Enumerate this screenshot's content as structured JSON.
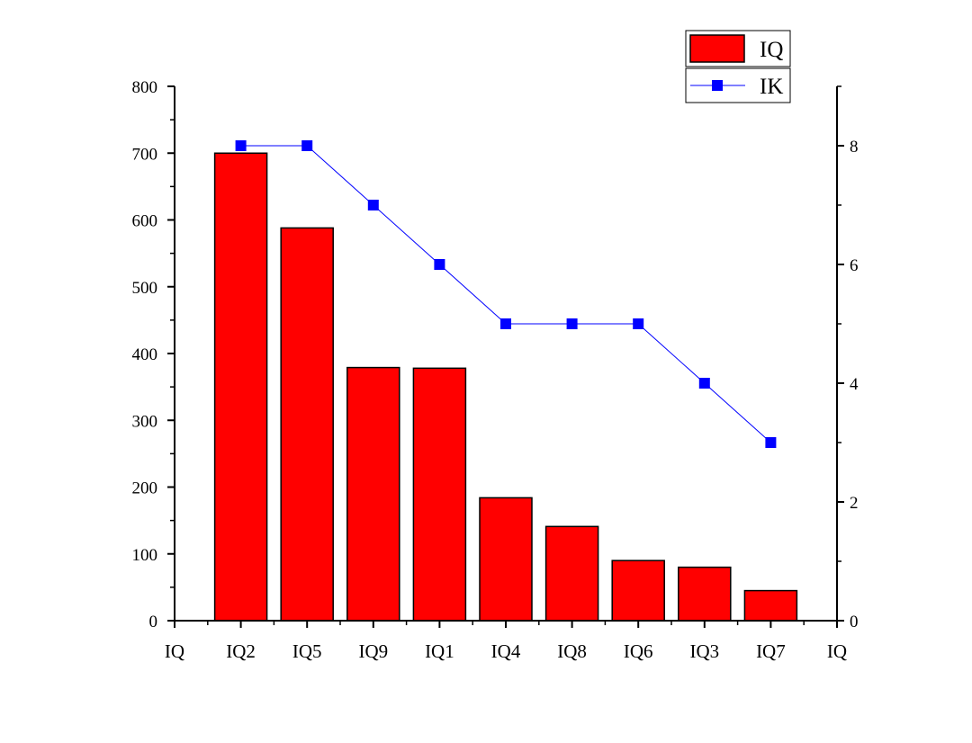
{
  "chart_data": {
    "type": "bar+line",
    "categories": [
      "IQ2",
      "IQ5",
      "IQ9",
      "IQ1",
      "IQ4",
      "IQ8",
      "IQ6",
      "IQ3",
      "IQ7"
    ],
    "x_edge_labels": [
      "IQ",
      "IQ"
    ],
    "series": [
      {
        "name": "IQ",
        "type": "bar",
        "axis": "left",
        "color": "#ff0000",
        "values": [
          700,
          588,
          379,
          378,
          184,
          141,
          90,
          80,
          45
        ]
      },
      {
        "name": "IK",
        "type": "line",
        "axis": "right",
        "color": "#0000ff",
        "marker": "square",
        "values": [
          8,
          8,
          7,
          6,
          5,
          5,
          5,
          4,
          3
        ]
      }
    ],
    "y_left": {
      "lim": [
        0,
        800
      ],
      "ticks": [
        0,
        100,
        200,
        300,
        400,
        500,
        600,
        700,
        800
      ]
    },
    "y_right": {
      "lim": [
        0,
        9
      ],
      "ticks": [
        0,
        2,
        4,
        6,
        8
      ]
    },
    "xlabel": "",
    "ylabel": "",
    "title": "",
    "grid": false,
    "legend": "top-right"
  }
}
